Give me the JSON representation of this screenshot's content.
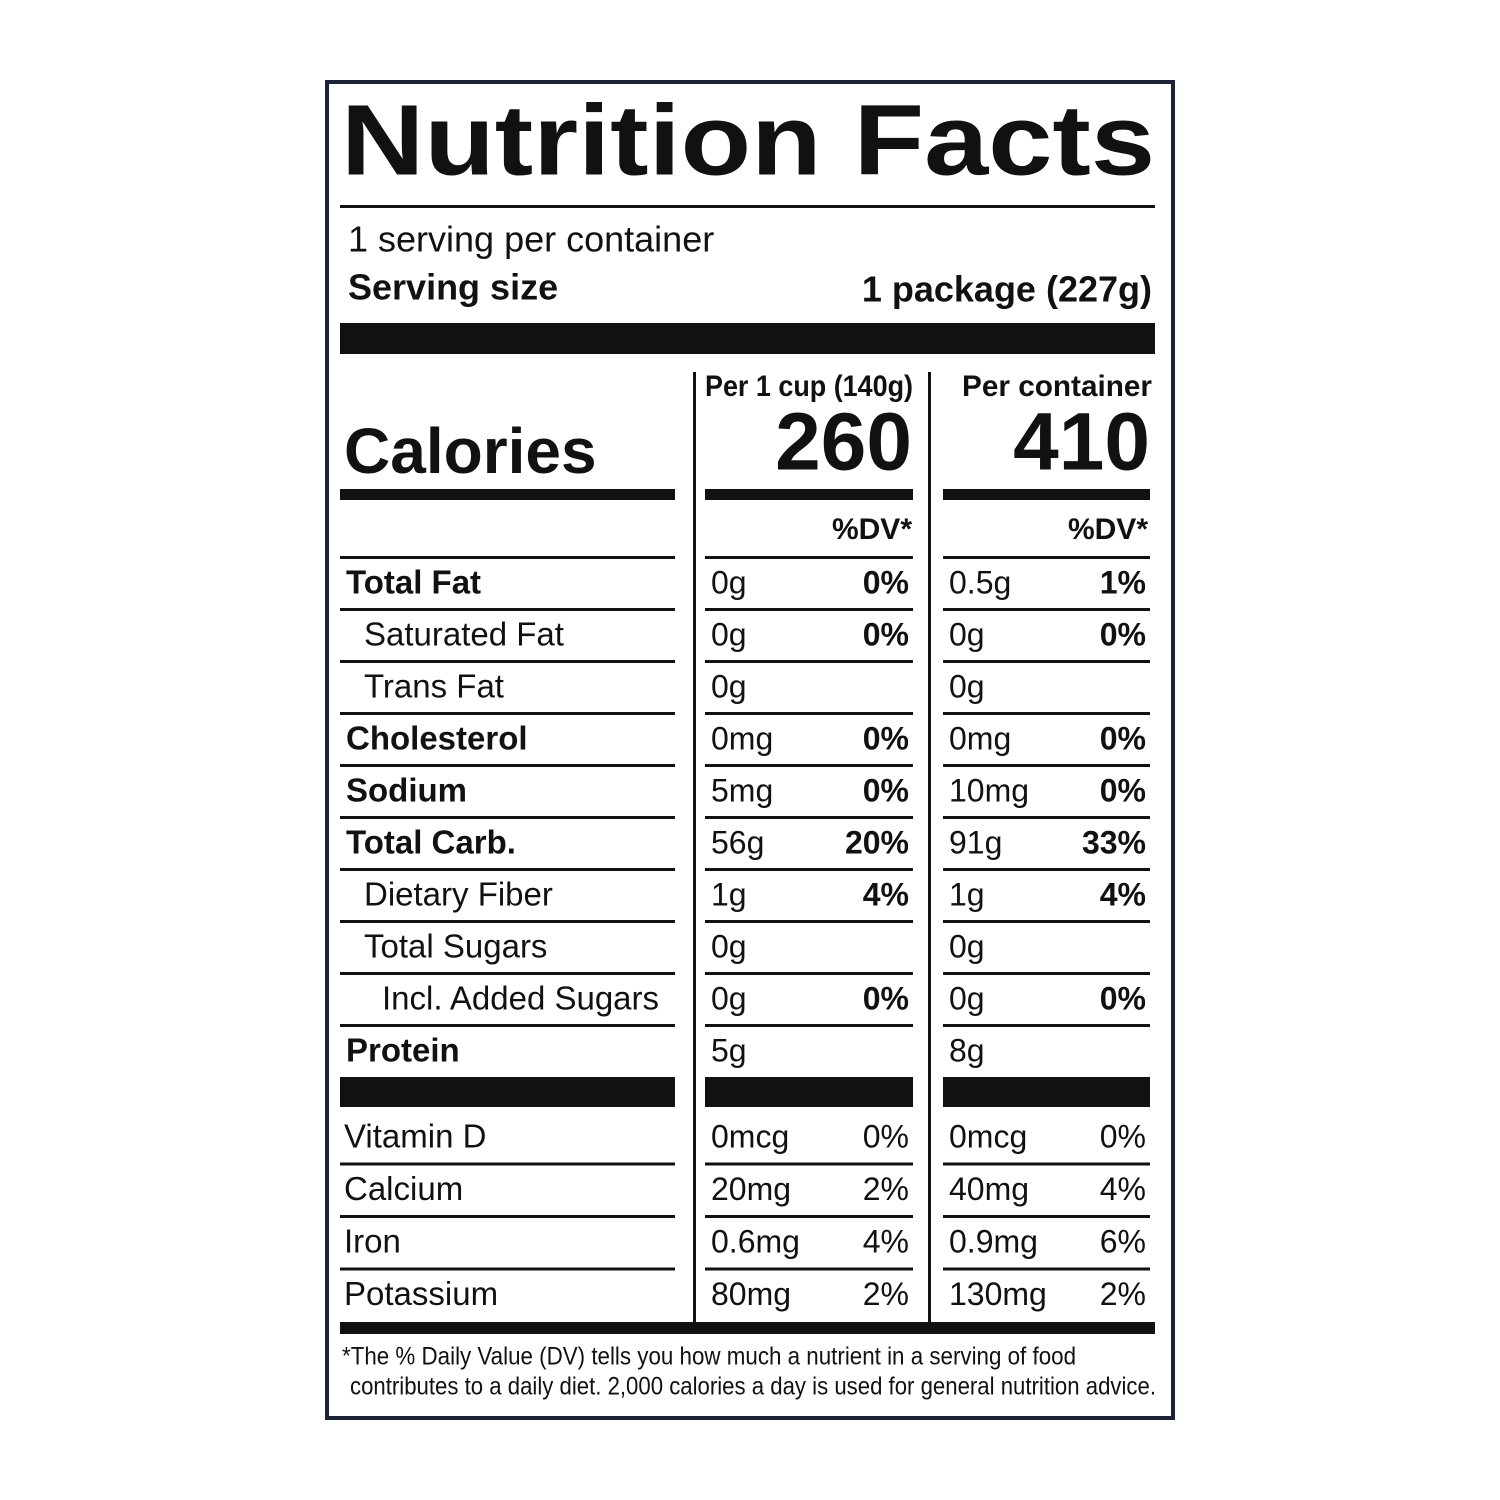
{
  "title": "Nutrition Facts",
  "servings": "1 serving per container",
  "serving_size": {
    "label": "Serving size",
    "value": "1 package (227g)"
  },
  "columns": [
    "Per 1 cup (140g)",
    "Per container"
  ],
  "calories": {
    "label": "Calories",
    "values": [
      "260",
      "410"
    ]
  },
  "dv_header": "%DV*",
  "nutrients": [
    {
      "label": "Total Fat",
      "values": [
        [
          "0g",
          "0%"
        ],
        [
          "0.5g",
          "1%"
        ]
      ]
    },
    {
      "label": "Saturated Fat",
      "values": [
        [
          "0g",
          "0%"
        ],
        [
          "0g",
          "0%"
        ]
      ]
    },
    {
      "label": "Trans Fat",
      "values": [
        [
          "0g"
        ],
        [
          "0g"
        ]
      ]
    },
    {
      "label": "Cholesterol",
      "values": [
        [
          "0mg",
          "0%"
        ],
        [
          "0mg",
          "0%"
        ]
      ]
    },
    {
      "label": "Sodium",
      "values": [
        [
          "5mg",
          "0%"
        ],
        [
          "10mg",
          "0%"
        ]
      ]
    },
    {
      "label": "Total Carb.",
      "values": [
        [
          "56g",
          "20%"
        ],
        [
          "91g",
          "33%"
        ]
      ]
    },
    {
      "label": "Dietary Fiber",
      "values": [
        [
          "1g",
          "4%"
        ],
        [
          "1g",
          "4%"
        ]
      ]
    },
    {
      "label": "Total Sugars",
      "values": [
        [
          "0g"
        ],
        [
          "0g"
        ]
      ]
    },
    {
      "label": "Incl. Added Sugars",
      "values": [
        [
          "0g",
          "0%"
        ],
        [
          "0g",
          "0%"
        ]
      ]
    },
    {
      "label": "Protein",
      "values": [
        [
          "5g"
        ],
        [
          "8g"
        ]
      ]
    }
  ],
  "vitamins": [
    {
      "label": "Vitamin D",
      "values": [
        [
          "0mcg",
          "0%"
        ],
        [
          "0mcg",
          "0%"
        ]
      ]
    },
    {
      "label": "Calcium",
      "values": [
        [
          "20mg",
          "2%"
        ],
        [
          "40mg",
          "4%"
        ]
      ]
    },
    {
      "label": "Iron",
      "values": [
        [
          "0.6mg",
          "4%"
        ],
        [
          "0.9mg",
          "6%"
        ]
      ]
    },
    {
      "label": "Potassium",
      "values": [
        [
          "80mg",
          "2%"
        ],
        [
          "130mg",
          "2%"
        ]
      ]
    }
  ],
  "footnote": [
    "*The % Daily Value (DV) tells you how much a nutrient in a serving of food",
    "contributes to a daily diet. 2,000 calories a day is used for general nutrition advice."
  ]
}
